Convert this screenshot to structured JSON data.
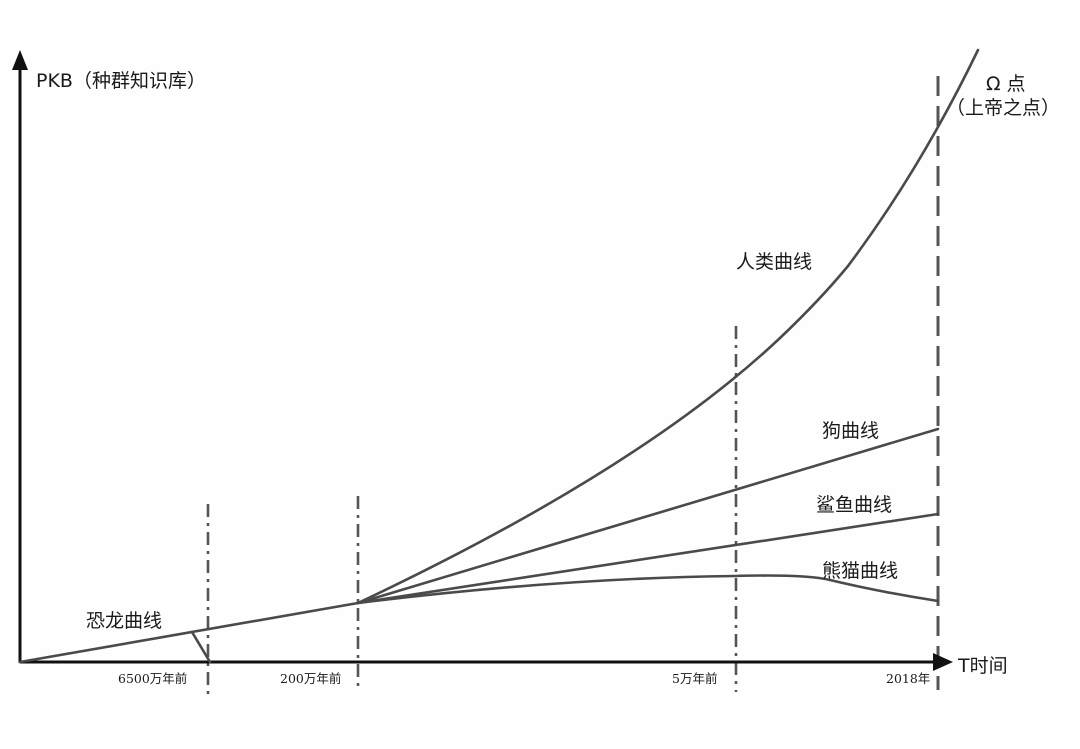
{
  "y_axis_label": "PKB（种群知识库）",
  "x_axis_label": "T时间",
  "omega_label": "Ω 点",
  "omega_sub_label": "（上帝之点）",
  "time_ticks": [
    "6500万年前",
    "200万年前",
    "5万年前",
    "2018年"
  ],
  "curves": {
    "dinosaur": "恐龙曲线",
    "human": "人类曲线",
    "dog": "狗曲线",
    "shark": "鲨鱼曲线",
    "panda": "熊猫曲线"
  },
  "colors": {
    "curve": "#4a4a4a",
    "axis": "#111111"
  }
}
